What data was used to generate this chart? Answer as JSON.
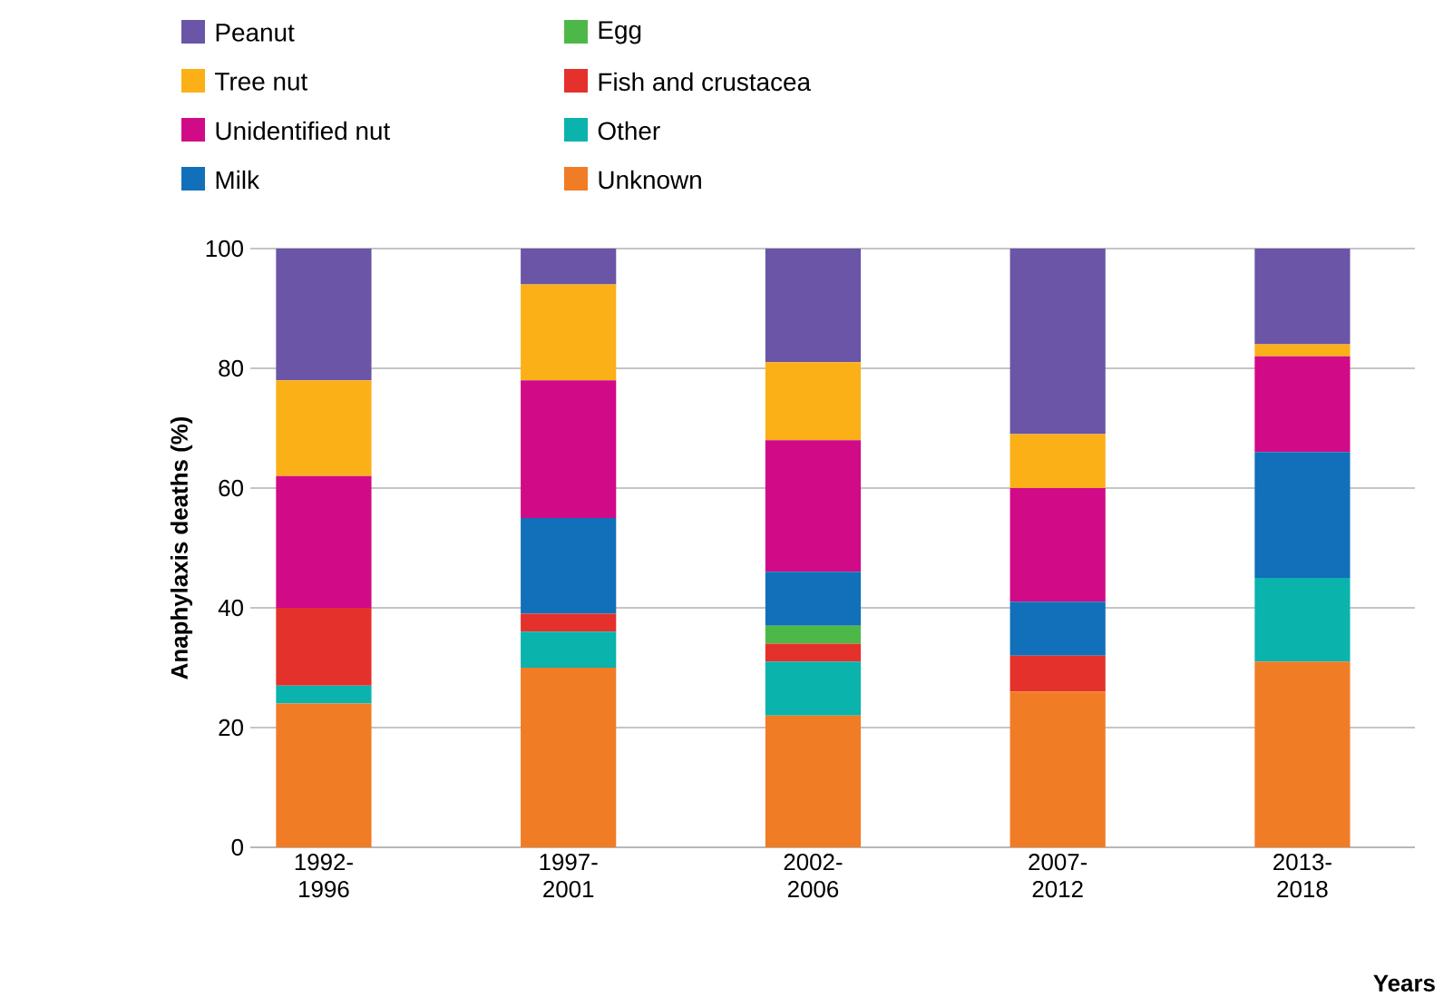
{
  "chart_data": {
    "type": "bar",
    "stacked": true,
    "xlabel": "Years",
    "ylabel": "Anaphylaxis deaths (%)",
    "categories": [
      "1992-1996",
      "1997-2001",
      "2002-2006",
      "2007-2012",
      "2013-2018"
    ],
    "series": [
      {
        "name": "Unknown",
        "color": "#f07c26",
        "values": [
          24,
          30,
          22,
          26,
          31
        ]
      },
      {
        "name": "Other",
        "color": "#0bb3ad",
        "values": [
          3,
          6,
          9,
          0,
          14
        ]
      },
      {
        "name": "Fish and crustacea",
        "color": "#e4312b",
        "values": [
          13,
          3,
          3,
          6,
          0
        ]
      },
      {
        "name": "Egg",
        "color": "#4db848",
        "values": [
          0,
          0,
          3,
          0,
          0
        ]
      },
      {
        "name": "Milk",
        "color": "#1170b9",
        "values": [
          0,
          16,
          9,
          9,
          21
        ]
      },
      {
        "name": "Unidentified nut",
        "color": "#d10a88",
        "values": [
          22,
          23,
          22,
          19,
          16
        ]
      },
      {
        "name": "Tree nut",
        "color": "#fbb018",
        "values": [
          16,
          16,
          13,
          9,
          2
        ]
      },
      {
        "name": "Peanut",
        "color": "#6a55a6",
        "values": [
          22,
          6,
          19,
          31,
          16
        ]
      }
    ],
    "ylim": [
      0,
      100
    ],
    "yticks": [
      0,
      20,
      40,
      60,
      80,
      100
    ],
    "grid": "y",
    "legend": "top"
  }
}
